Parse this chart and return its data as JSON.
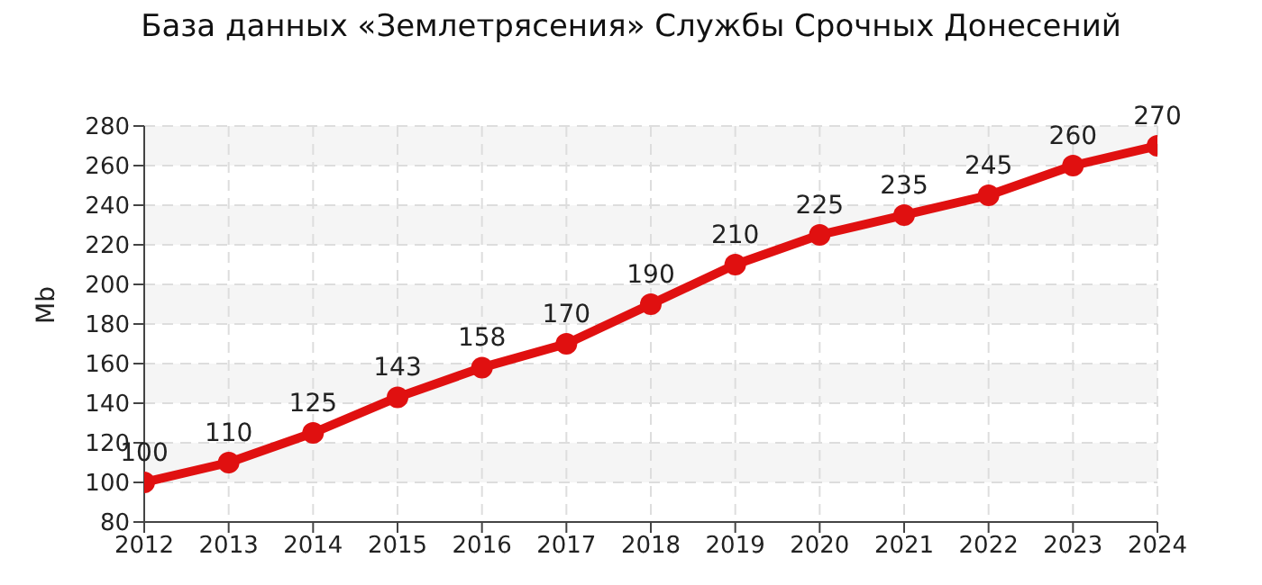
{
  "chart_data": {
    "type": "line",
    "title": "База данных «Землетрясения» Службы Срочных Донесений",
    "ylabel": "Mb",
    "x": [
      2012,
      2013,
      2014,
      2015,
      2016,
      2017,
      2018,
      2019,
      2020,
      2021,
      2022,
      2023,
      2024
    ],
    "series": [
      {
        "color": "#e01010",
        "values": [
          100,
          110,
          125,
          143,
          158,
          170,
          190,
          210,
          225,
          235,
          245,
          260,
          270
        ]
      }
    ],
    "xlim": [
      2012,
      2024
    ],
    "xticks": [
      2012,
      2013,
      2014,
      2015,
      2016,
      2017,
      2018,
      2019,
      2020,
      2021,
      2022,
      2023,
      2024
    ],
    "ylim": [
      80,
      280
    ],
    "yticks": [
      80,
      100,
      120,
      140,
      160,
      180,
      200,
      220,
      240,
      260,
      280
    ],
    "grid": true,
    "marker": "circle",
    "line_style": "solid",
    "data_labels": true
  }
}
